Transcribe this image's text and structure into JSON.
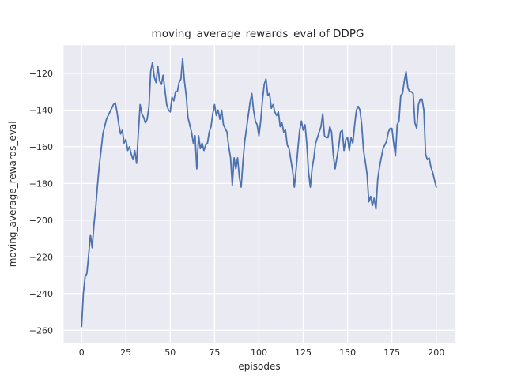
{
  "chart_data": {
    "type": "line",
    "title": "moving_average_rewards_eval of DDPG",
    "xlabel": "episodes",
    "ylabel": "moving_average_rewards_eval",
    "x_start": 0,
    "x_step": 1,
    "xticks": [
      0,
      25,
      50,
      75,
      100,
      125,
      150,
      175,
      200
    ],
    "yticks": [
      -120,
      -140,
      -160,
      -180,
      -200,
      -220,
      -240,
      -260
    ],
    "xlim": [
      -10.1,
      210.9
    ],
    "ylim": [
      -266.9,
      -104.6
    ],
    "grid": true,
    "legend_position": "none",
    "style": {
      "plot_bg": "#eaeaf2",
      "grid_color": "#ffffff",
      "fig_bg": "#ffffff",
      "text_color": "#262626",
      "line_color": "#4c72b0",
      "line_width": 1.8,
      "grid_width": 1.3
    },
    "series": [
      {
        "name": "moving_average_rewards_eval",
        "color": "#4c72b0",
        "values": [
          -258,
          -240,
          -231,
          -229,
          -219,
          -208,
          -215,
          -202,
          -193,
          -181,
          -170,
          -162,
          -153,
          -149,
          -145,
          -143,
          -141,
          -139,
          -137,
          -136,
          -141,
          -148,
          -153,
          -151,
          -158,
          -156,
          -162,
          -160,
          -164,
          -167,
          -162,
          -169,
          -153,
          -137,
          -142,
          -144,
          -147,
          -145,
          -138,
          -119,
          -114,
          -122,
          -125,
          -116,
          -124,
          -126,
          -121,
          -129,
          -137,
          -140,
          -141,
          -133,
          -135,
          -130,
          -130,
          -125,
          -123,
          -112,
          -124,
          -132,
          -144,
          -148,
          -152,
          -158,
          -154,
          -172,
          -154,
          -161,
          -158,
          -162,
          -159,
          -158,
          -152,
          -149,
          -142,
          -137,
          -143,
          -140,
          -145,
          -140,
          -148,
          -150,
          -152,
          -160,
          -166,
          -181,
          -166,
          -172,
          -166,
          -177,
          -182,
          -168,
          -157,
          -150,
          -143,
          -136,
          -131,
          -140,
          -146,
          -148,
          -154,
          -146,
          -135,
          -126,
          -123,
          -132,
          -131,
          -139,
          -137,
          -141,
          -143,
          -141,
          -149,
          -147,
          -152,
          -151,
          -159,
          -161,
          -167,
          -173,
          -182,
          -172,
          -161,
          -151,
          -146,
          -151,
          -148,
          -158,
          -174,
          -182,
          -172,
          -166,
          -158,
          -155,
          -152,
          -149,
          -142,
          -154,
          -155,
          -155,
          -149,
          -152,
          -165,
          -172,
          -166,
          -160,
          -152,
          -151,
          -162,
          -156,
          -155,
          -162,
          -155,
          -158,
          -148,
          -140,
          -138,
          -140,
          -148,
          -162,
          -168,
          -175,
          -190,
          -187,
          -192,
          -188,
          -194,
          -178,
          -171,
          -166,
          -161,
          -159,
          -157,
          -152,
          -150,
          -150,
          -158,
          -165,
          -148,
          -146,
          -132,
          -131,
          -124,
          -119,
          -128,
          -130,
          -130,
          -131,
          -147,
          -150,
          -137,
          -134,
          -134,
          -140,
          -164,
          -167,
          -166,
          -171,
          -174,
          -178,
          -182
        ]
      }
    ]
  }
}
